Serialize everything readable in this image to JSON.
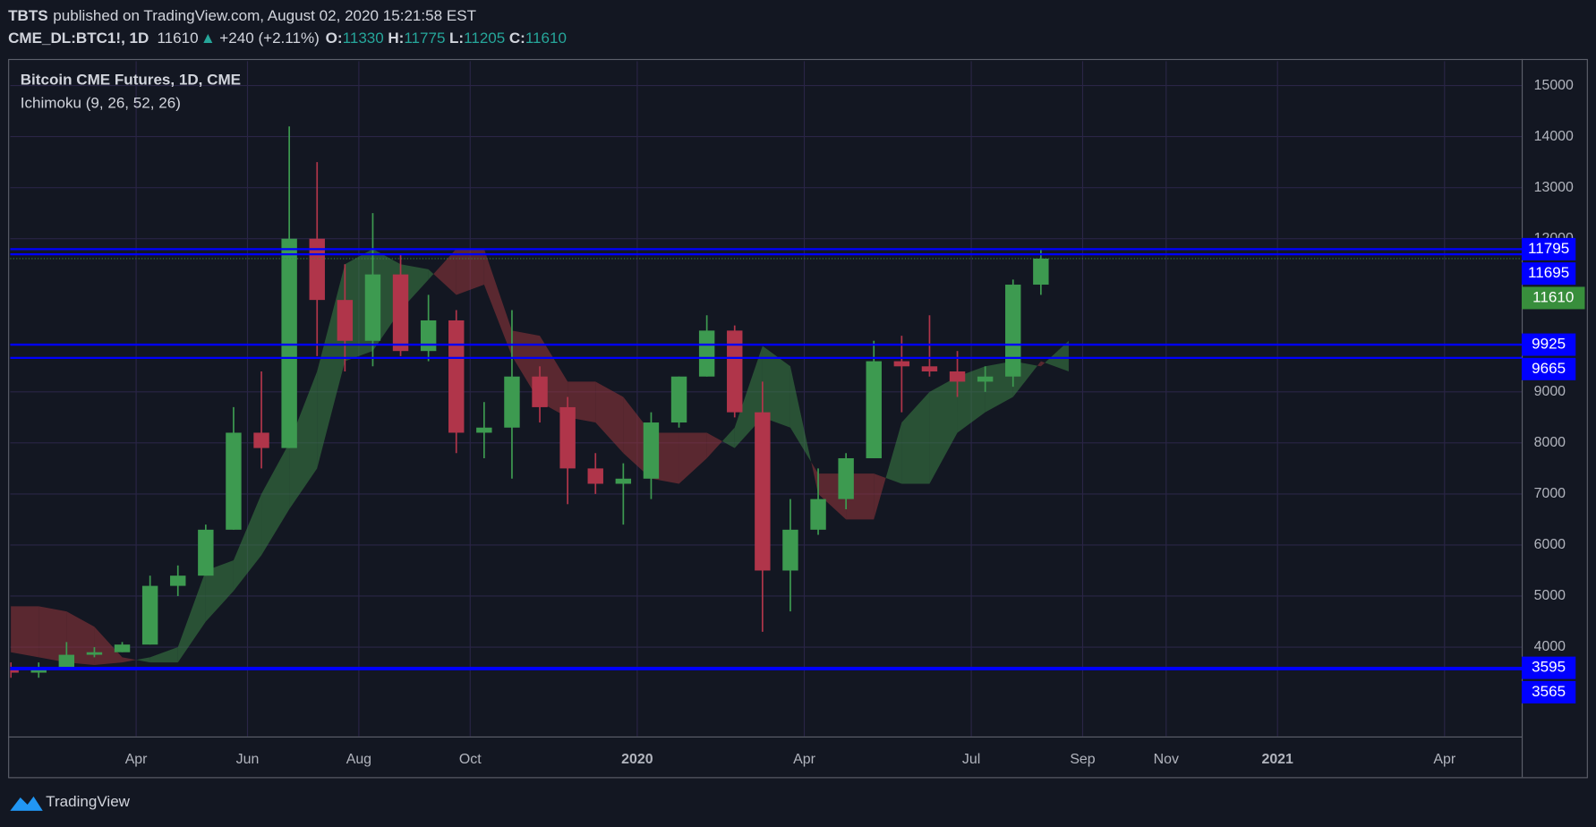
{
  "header": {
    "author": "TBTS",
    "published": "published on TradingView.com, August 02, 2020 15:21:58 EST",
    "symbol": "CME_DL:BTC1!, 1D",
    "last": "11610",
    "arrow": "▲",
    "change": "+240 (+2.11%)",
    "ohlc": [
      {
        "label": "O:",
        "value": "11330"
      },
      {
        "label": "H:",
        "value": "11775"
      },
      {
        "label": "L:",
        "value": "11205"
      },
      {
        "label": "C:",
        "value": "11610"
      }
    ]
  },
  "chart_data": {
    "type": "candlestick",
    "title": "Bitcoin CME Futures, 1D, CME",
    "subtitle": "Ichimoku (9, 26, 52, 26)",
    "categories": [
      null,
      null,
      null,
      null,
      null,
      "Apr",
      null,
      null,
      null,
      "Jun",
      null,
      null,
      null,
      "Aug",
      null,
      null,
      null,
      "Oct",
      null,
      null,
      null,
      null,
      null,
      "2020",
      null,
      null,
      null,
      null,
      null,
      "Apr",
      null,
      null,
      null,
      null,
      null,
      "Jul",
      null,
      null,
      null,
      "Sep",
      null,
      null,
      "Nov",
      null,
      null,
      null,
      "2021",
      null,
      null,
      null,
      null,
      null,
      "Apr",
      null
    ],
    "open": [
      3600,
      3500,
      3600,
      3850,
      3900,
      4050,
      5200,
      5400,
      6300,
      8200,
      7900,
      12000,
      10800,
      10000,
      11300,
      9800,
      10400,
      8200,
      8300,
      9300,
      8700,
      7500,
      7200,
      7300,
      8400,
      9300,
      10200,
      8600,
      5500,
      6300,
      6900,
      7700,
      9600,
      9500,
      9400,
      9200,
      9300,
      11100,
      null,
      null,
      null,
      null,
      null,
      null,
      null,
      null,
      null,
      null,
      null,
      null,
      null,
      null,
      null,
      null
    ],
    "high": [
      3700,
      3700,
      4100,
      4000,
      4100,
      5400,
      5600,
      6400,
      8700,
      9400,
      14200,
      13500,
      11500,
      12500,
      11700,
      10900,
      10600,
      8800,
      10600,
      9500,
      8900,
      7800,
      7600,
      8600,
      9300,
      10500,
      10300,
      9200,
      6900,
      7500,
      7800,
      10000,
      10100,
      10500,
      9800,
      9500,
      11200,
      11800,
      null,
      null,
      null,
      null,
      null,
      null,
      null,
      null,
      null,
      null,
      null,
      null,
      null,
      null,
      null,
      null
    ],
    "low": [
      3400,
      3400,
      3600,
      3800,
      3900,
      4050,
      5000,
      5400,
      6300,
      7500,
      7900,
      9700,
      9400,
      9500,
      9700,
      9600,
      7800,
      7700,
      7300,
      8400,
      6800,
      7000,
      6400,
      6900,
      8300,
      9300,
      8500,
      4300,
      4700,
      6200,
      6700,
      7700,
      8600,
      9300,
      8900,
      9000,
      9100,
      10900,
      null,
      null,
      null,
      null,
      null,
      null,
      null,
      null,
      null,
      null,
      null,
      null,
      null,
      null,
      null,
      null
    ],
    "close": [
      3500,
      3600,
      3850,
      3900,
      4050,
      5200,
      5400,
      6300,
      8200,
      7900,
      12000,
      10800,
      10000,
      11300,
      9800,
      10400,
      8200,
      8300,
      9300,
      8700,
      7500,
      7200,
      7300,
      8400,
      9300,
      10200,
      8600,
      5500,
      6300,
      6900,
      7700,
      9600,
      9500,
      9400,
      9200,
      9300,
      11100,
      11610,
      null,
      null,
      null,
      null,
      null,
      null,
      null,
      null,
      null,
      null,
      null,
      null,
      null,
      null,
      null,
      null
    ],
    "up_color": "#3d9a50",
    "down_color": "#b0354a",
    "cloud": {
      "span_a": [
        3900,
        3800,
        3700,
        3650,
        3700,
        3800,
        4000,
        5500,
        5700,
        7000,
        8000,
        9400,
        11500,
        11800,
        11500,
        11400,
        10900,
        11100,
        9700,
        8800,
        8500,
        8400,
        7800,
        7300,
        7200,
        7700,
        8300,
        9900,
        9500,
        7000,
        6500,
        6500,
        8400,
        9000,
        9300,
        9500,
        9600,
        9500,
        10000,
        null,
        null,
        null,
        null,
        null,
        null,
        null,
        null,
        null,
        null,
        null,
        null,
        null,
        null,
        null
      ],
      "span_b": [
        4800,
        4800,
        4700,
        4400,
        3800,
        3700,
        3700,
        4500,
        5100,
        5800,
        6700,
        7500,
        9600,
        9800,
        10600,
        11200,
        11800,
        11800,
        10200,
        10100,
        9200,
        9200,
        8900,
        8200,
        8200,
        8200,
        7900,
        8500,
        8300,
        7400,
        7400,
        7400,
        7200,
        7200,
        8200,
        8600,
        8900,
        9600,
        9400,
        null,
        null,
        null,
        null,
        null,
        null,
        null,
        null,
        null,
        null,
        null,
        null,
        null,
        null,
        null
      ],
      "up_color": "rgba(60,130,70,0.55)",
      "down_color": "rgba(150,55,60,0.55)"
    },
    "ylim": [
      2250,
      15480
    ],
    "yticks": [
      4000,
      5000,
      6000,
      7000,
      8000,
      9000,
      12000,
      13000,
      14000,
      15000
    ],
    "grid": true,
    "levels": {
      "values": [
        11795,
        11695,
        9925,
        9665,
        3595,
        3565
      ],
      "color": "#0000ff"
    },
    "last_price": {
      "value": 11610,
      "color": "#388e3c"
    }
  },
  "footer": {
    "brand": "TradingView"
  }
}
